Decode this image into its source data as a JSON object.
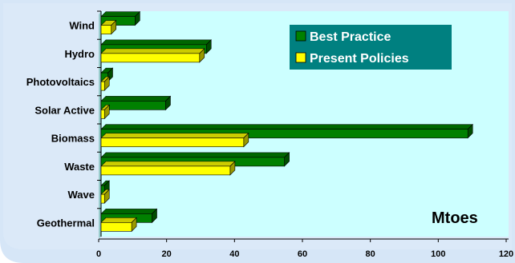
{
  "chart_data": {
    "type": "bar",
    "orientation": "horizontal",
    "categories": [
      "Wind",
      "Hydro",
      "Photovoltaics",
      "Solar Active",
      "Biomass",
      "Waste",
      "Wave",
      "Geothermal"
    ],
    "series": [
      {
        "name": "Best Practice",
        "values": [
          10,
          31,
          2,
          19,
          108,
          54,
          1,
          15
        ],
        "color": "#008000"
      },
      {
        "name": "Present Policies",
        "values": [
          3,
          29,
          1,
          1,
          42,
          38,
          1,
          9
        ],
        "color": "#ffff00"
      }
    ],
    "xlim": [
      0,
      120
    ],
    "xticks": [
      0,
      20,
      40,
      60,
      80,
      100,
      120
    ],
    "unit_annotation": "Mtoes",
    "legend_position": "top-right",
    "legend_background": "#008080",
    "background_color": "#ccffff"
  }
}
